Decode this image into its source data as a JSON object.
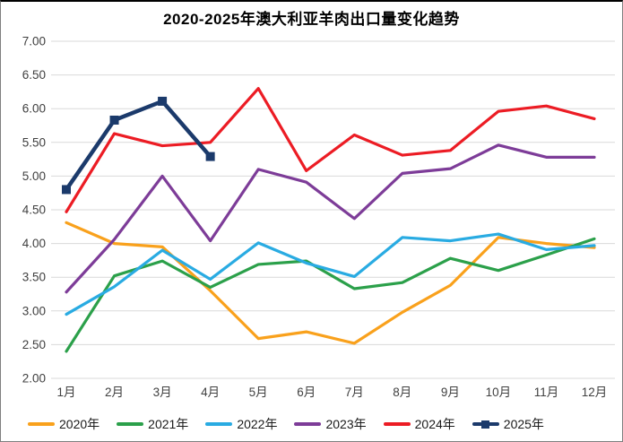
{
  "title": "2020-2025年澳大利亚羊肉出口量变化趋势",
  "chart_data": {
    "type": "line",
    "title": "2020-2025年澳大利亚羊肉出口量变化趋势",
    "categories": [
      "1月",
      "2月",
      "3月",
      "4月",
      "5月",
      "6月",
      "7月",
      "8月",
      "9月",
      "10月",
      "11月",
      "12月"
    ],
    "yticks": [
      "7.00",
      "6.50",
      "6.00",
      "5.50",
      "5.00",
      "4.50",
      "4.00",
      "3.50",
      "3.00",
      "2.50",
      "2.00"
    ],
    "ylim": [
      2.0,
      7.0
    ],
    "grid": true,
    "grid_color": "#d9d9d9",
    "tick_color": "#404040",
    "legend_position": "bottom",
    "series": [
      {
        "name": "2020年",
        "color": "#F9A11C",
        "marker": "none",
        "values": [
          4.31,
          4.0,
          3.95,
          3.3,
          2.59,
          2.69,
          2.52,
          2.98,
          3.38,
          4.09,
          4.0,
          3.94
        ]
      },
      {
        "name": "2021年",
        "color": "#2BA04A",
        "marker": "none",
        "values": [
          2.4,
          3.52,
          3.74,
          3.35,
          3.69,
          3.74,
          3.33,
          3.42,
          3.78,
          3.6,
          3.83,
          4.07
        ]
      },
      {
        "name": "2022年",
        "color": "#29ABE2",
        "marker": "none",
        "values": [
          2.95,
          3.36,
          3.9,
          3.47,
          4.01,
          3.71,
          3.51,
          4.09,
          4.04,
          4.14,
          3.91,
          3.97
        ]
      },
      {
        "name": "2023年",
        "color": "#7D3C98",
        "marker": "none",
        "values": [
          3.28,
          4.06,
          5.0,
          4.04,
          5.1,
          4.91,
          4.37,
          5.04,
          5.11,
          5.46,
          5.28,
          5.28
        ]
      },
      {
        "name": "2024年",
        "color": "#EC1C24",
        "marker": "none",
        "values": [
          4.47,
          5.63,
          5.45,
          5.5,
          6.3,
          5.08,
          5.61,
          5.31,
          5.38,
          5.96,
          6.04,
          5.85
        ]
      },
      {
        "name": "2025年",
        "color": "#1B3A6B",
        "marker": "square",
        "values": [
          4.8,
          5.83,
          6.11,
          5.29,
          null,
          null,
          null,
          null,
          null,
          null,
          null,
          null
        ]
      }
    ]
  }
}
